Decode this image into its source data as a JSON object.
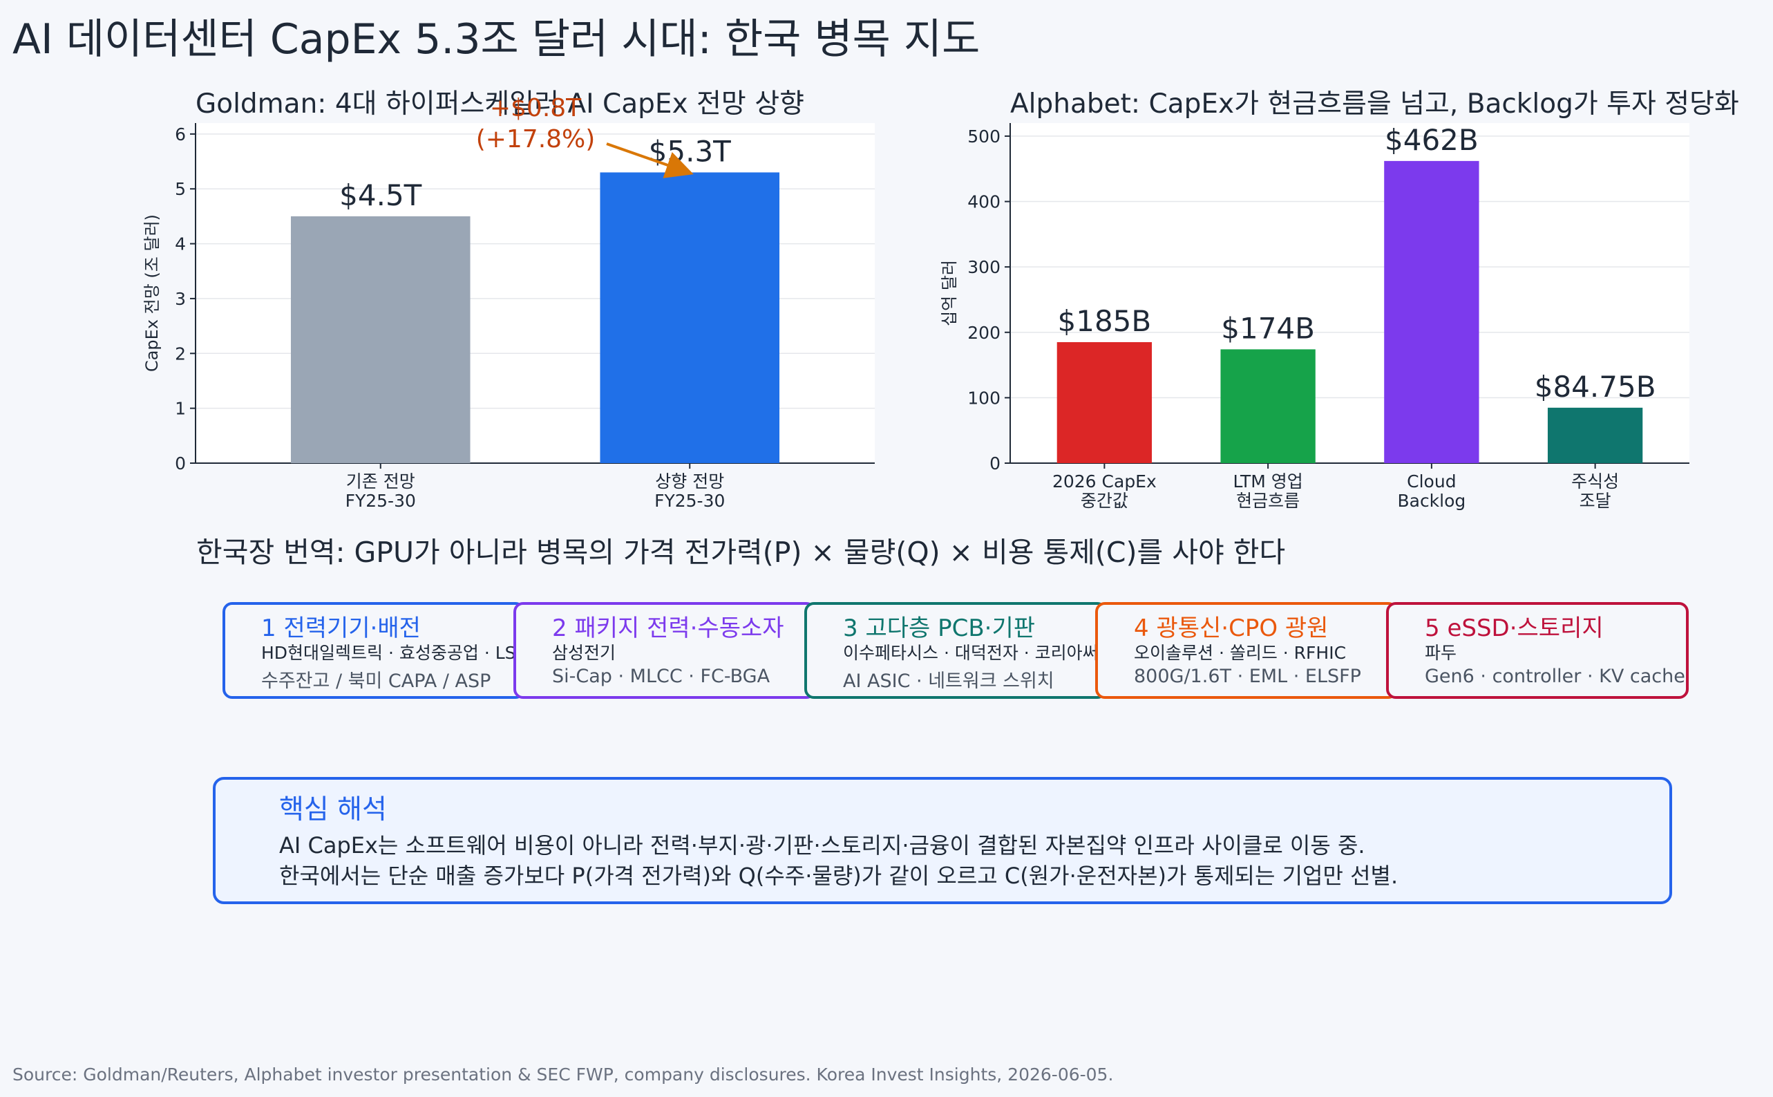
{
  "title": "AI 데이터센터 CapEx 5.3조 달러 시대: 한국 병목 지도",
  "chart_data": [
    {
      "type": "bar",
      "title": "Goldman: 4대 하이퍼스케일러 AI CapEx 전망 상향",
      "ylabel": "CapEx 전망 (조 달러)",
      "xlabel": "",
      "categories": [
        "기존 전망\nFY25-30",
        "상향 전망\nFY25-30"
      ],
      "values": [
        4.5,
        5.3
      ],
      "value_labels": [
        "$4.5T",
        "$5.3T"
      ],
      "colors": [
        "#9aa6b5",
        "#2070e8"
      ],
      "ylim": [
        0,
        6.2
      ],
      "yticks": [
        0,
        1,
        2,
        3,
        4,
        5,
        6
      ],
      "grid": true,
      "annotation": {
        "line1": "+$0.8T",
        "line2": "(+17.8%)",
        "color": "#d97706"
      }
    },
    {
      "type": "bar",
      "title": "Alphabet: CapEx가 현금흐름을 넘고, Backlog가 투자 정당화",
      "ylabel": "십억 달러",
      "xlabel": "",
      "categories": [
        "2026 CapEx\n중간값",
        "LTM 영업\n현금흐름",
        "Cloud\nBacklog",
        "주식성\n조달"
      ],
      "values": [
        185,
        174,
        462,
        84.75
      ],
      "value_labels": [
        "$185B",
        "$174B",
        "$462B",
        "$84.75B"
      ],
      "colors": [
        "#dc2626",
        "#16a34a",
        "#7c3aed",
        "#0f766e"
      ],
      "ylim": [
        0,
        520
      ],
      "yticks": [
        0,
        100,
        200,
        300,
        400,
        500
      ],
      "grid": true
    }
  ],
  "korea_title": "한국장 번역: GPU가 아니라 병목의 가격 전가력(P) × 물량(Q) × 비용 통제(C)를 사야 한다",
  "steps": [
    {
      "title": "1 전력기기·배전",
      "companies": "HD현대일렉트릭 · 효성중공업 · LS ELECTRIC",
      "tags": "수주잔고 / 북미 CAPA / ASP",
      "color": "#2563eb"
    },
    {
      "title": "2 패키지 전력·수동소자",
      "companies": "삼성전기",
      "tags": "Si-Cap · MLCC · FC-BGA",
      "color": "#7c3aed"
    },
    {
      "title": "3 고다층 PCB·기판",
      "companies": "이수페타시스 · 대덕전자 · 코리아써키트",
      "tags": "AI ASIC · 네트워크 스위치",
      "color": "#0f766e"
    },
    {
      "title": "4 광통신·CPO 광원",
      "companies": "오이솔루션 · 쏠리드 · RFHIC",
      "tags": "800G/1.6T · EML · ELSFP",
      "color": "#ea580c"
    },
    {
      "title": "5 eSSD·스토리지",
      "companies": "파두",
      "tags": "Gen6 · controller · KV cache",
      "color": "#be123c"
    }
  ],
  "arrow_glyph": "⟶",
  "summary": {
    "title": "핵심 해석",
    "line1": "AI CapEx는 소프트웨어 비용이 아니라 전력·부지·광·기판·스토리지·금융이 결합된 자본집약 인프라 사이클로 이동 중.",
    "line2": "한국에서는 단순 매출 증가보다 P(가격 전가력)와 Q(수주·물량)가 같이 오르고 C(원가·운전자본)가 통제되는 기업만 선별."
  },
  "source": "Source: Goldman/Reuters, Alphabet investor presentation & SEC FWP, company disclosures. Korea Invest Insights, 2026-06-05."
}
